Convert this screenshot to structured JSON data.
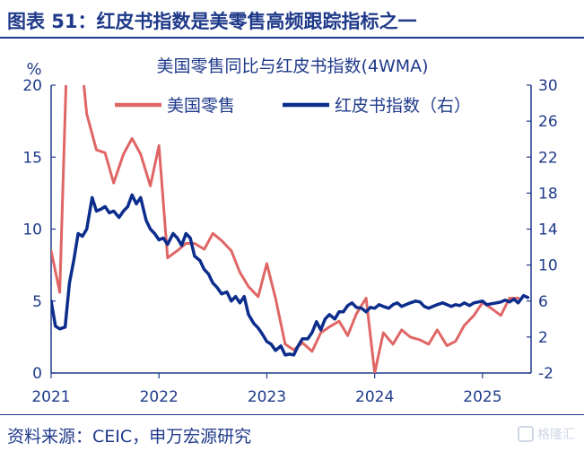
{
  "figure": {
    "title": "图表 51：红皮书指数是美零售高频跟踪指标之一",
    "source": "资料来源：CEIC，申万宏源研究",
    "watermark": "格隆汇"
  },
  "colors": {
    "brand": "#1f3a8a",
    "retail": "#e06666",
    "redbook": "#0c2d8c"
  },
  "chart_data": {
    "type": "line",
    "title": "美国零售同比与红皮书指数(4WMA)",
    "unit_left": "%",
    "x_ticks": [
      "2021",
      "2022",
      "2023",
      "2024",
      "2025"
    ],
    "xlim": [
      2021.0,
      2025.45
    ],
    "y_left": {
      "lim": [
        0,
        20
      ],
      "ticks": [
        0,
        5,
        10,
        15,
        20
      ]
    },
    "y_right": {
      "lim": [
        -2,
        30
      ],
      "ticks": [
        -2,
        2,
        6,
        10,
        14,
        18,
        22,
        26,
        30
      ]
    },
    "legend": {
      "position": "top-right",
      "items": [
        "美国零售",
        "红皮书指数（右）"
      ]
    },
    "series": [
      {
        "name": "美国零售",
        "axis": "left",
        "x": [
          2021.0,
          2021.08,
          2021.17,
          2021.25,
          2021.33,
          2021.42,
          2021.5,
          2021.58,
          2021.67,
          2021.75,
          2021.83,
          2021.92,
          2022.0,
          2022.08,
          2022.17,
          2022.25,
          2022.33,
          2022.42,
          2022.5,
          2022.58,
          2022.67,
          2022.75,
          2022.83,
          2022.92,
          2023.0,
          2023.08,
          2023.17,
          2023.25,
          2023.33,
          2023.42,
          2023.5,
          2023.58,
          2023.67,
          2023.75,
          2023.83,
          2023.92,
          2024.0,
          2024.08,
          2024.17,
          2024.25,
          2024.33,
          2024.42,
          2024.5,
          2024.58,
          2024.67,
          2024.75,
          2024.83,
          2024.92,
          2025.0,
          2025.08,
          2025.17,
          2025.25,
          2025.33
        ],
        "values": [
          8.5,
          5.6,
          28.0,
          24.0,
          18.0,
          15.5,
          15.3,
          13.2,
          15.2,
          16.3,
          15.2,
          13.0,
          15.8,
          8.0,
          8.5,
          9.0,
          9.0,
          8.6,
          9.7,
          9.2,
          8.5,
          7.0,
          6.0,
          5.3,
          7.6,
          5.2,
          2.0,
          1.6,
          2.1,
          1.5,
          2.8,
          3.2,
          3.6,
          2.6,
          4.1,
          5.2,
          0.0,
          2.8,
          2.0,
          3.0,
          2.5,
          2.3,
          2.0,
          3.0,
          1.9,
          2.2,
          3.3,
          4.0,
          4.9,
          4.5,
          4.0,
          5.2,
          5.2
        ]
      },
      {
        "name": "红皮书指数（右）",
        "axis": "right",
        "x": [
          2021.0,
          2021.04,
          2021.08,
          2021.13,
          2021.17,
          2021.21,
          2021.25,
          2021.29,
          2021.33,
          2021.38,
          2021.42,
          2021.46,
          2021.5,
          2021.54,
          2021.58,
          2021.63,
          2021.67,
          2021.71,
          2021.75,
          2021.79,
          2021.83,
          2021.88,
          2021.92,
          2021.96,
          2022.0,
          2022.04,
          2022.08,
          2022.13,
          2022.17,
          2022.21,
          2022.25,
          2022.29,
          2022.33,
          2022.38,
          2022.42,
          2022.46,
          2022.5,
          2022.54,
          2022.58,
          2022.63,
          2022.67,
          2022.71,
          2022.75,
          2022.79,
          2022.83,
          2022.88,
          2022.92,
          2022.96,
          2023.0,
          2023.04,
          2023.08,
          2023.13,
          2023.17,
          2023.21,
          2023.25,
          2023.29,
          2023.33,
          2023.38,
          2023.42,
          2023.46,
          2023.5,
          2023.54,
          2023.58,
          2023.63,
          2023.67,
          2023.71,
          2023.75,
          2023.79,
          2023.83,
          2023.88,
          2023.92,
          2023.96,
          2024.0,
          2024.04,
          2024.08,
          2024.13,
          2024.17,
          2024.21,
          2024.25,
          2024.29,
          2024.33,
          2024.38,
          2024.42,
          2024.46,
          2024.5,
          2024.54,
          2024.58,
          2024.63,
          2024.67,
          2024.71,
          2024.75,
          2024.79,
          2024.83,
          2024.88,
          2024.92,
          2024.96,
          2025.0,
          2025.04,
          2025.08,
          2025.13,
          2025.17,
          2025.21,
          2025.25,
          2025.29,
          2025.33,
          2025.38,
          2025.42
        ],
        "values": [
          6.0,
          3.2,
          2.9,
          3.1,
          8.0,
          10.5,
          13.5,
          13.2,
          14.0,
          17.5,
          16.0,
          16.2,
          16.5,
          15.8,
          16.0,
          15.3,
          16.0,
          16.5,
          17.8,
          16.8,
          17.5,
          15.0,
          14.0,
          13.5,
          12.8,
          13.0,
          12.3,
          13.5,
          13.0,
          12.2,
          13.5,
          13.0,
          11.0,
          10.5,
          9.5,
          9.0,
          8.0,
          7.5,
          6.8,
          7.0,
          6.0,
          6.5,
          5.8,
          6.5,
          4.5,
          3.5,
          3.0,
          2.3,
          1.5,
          1.2,
          0.5,
          1.0,
          0.0,
          0.1,
          0.0,
          1.0,
          1.8,
          1.8,
          2.5,
          3.7,
          2.8,
          4.0,
          4.5,
          4.0,
          4.8,
          4.8,
          5.5,
          5.8,
          5.3,
          5.2,
          4.8,
          5.3,
          5.2,
          5.6,
          5.4,
          5.2,
          5.6,
          5.8,
          5.4,
          5.6,
          5.8,
          6.0,
          5.9,
          5.4,
          5.2,
          5.4,
          5.6,
          5.8,
          5.6,
          5.4,
          5.6,
          5.5,
          5.8,
          5.5,
          5.8,
          5.9,
          6.0,
          5.6,
          5.7,
          5.8,
          5.9,
          6.1,
          5.9,
          6.2,
          5.8,
          6.6,
          6.4
        ]
      }
    ]
  }
}
